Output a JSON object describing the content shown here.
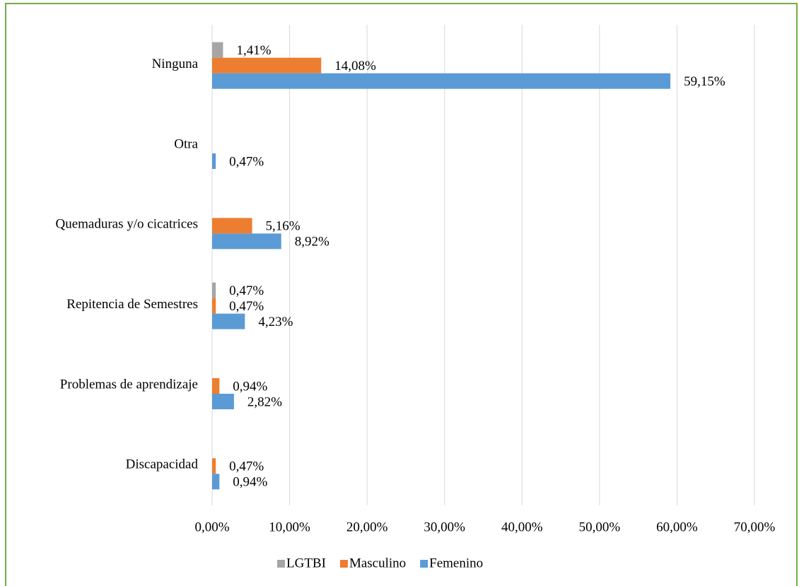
{
  "chart_data": {
    "type": "hbar",
    "categories": [
      "Ninguna",
      "Otra",
      "Quemaduras y/o cicatrices",
      "Repitencia de Semestres",
      "Problemas de aprendizaje",
      "Discapacidad"
    ],
    "series": [
      {
        "name": "LGTBI",
        "color": "#a5a5a5",
        "values": [
          1.41,
          null,
          null,
          0.47,
          null,
          null
        ],
        "value_labels": [
          "1,41%",
          null,
          null,
          "0,47%",
          null,
          null
        ]
      },
      {
        "name": "Masculino",
        "color": "#ed7d31",
        "values": [
          14.08,
          null,
          5.16,
          0.47,
          0.94,
          0.47
        ],
        "value_labels": [
          "14,08%",
          null,
          "5,16%",
          "0,47%",
          "0,94%",
          "0,47%"
        ]
      },
      {
        "name": "Femenino",
        "color": "#5b9bd5",
        "values": [
          59.15,
          0.47,
          8.92,
          4.23,
          2.82,
          0.94
        ],
        "value_labels": [
          "59,15%",
          "0,47%",
          "8,92%",
          "4,23%",
          "2,82%",
          "0,94%"
        ]
      }
    ],
    "xlim": [
      0,
      70
    ],
    "xticks": [
      {
        "value": 0,
        "label": "0,00%"
      },
      {
        "value": 10,
        "label": "10,00%"
      },
      {
        "value": 20,
        "label": "20,00%"
      },
      {
        "value": 30,
        "label": "30,00%"
      },
      {
        "value": 40,
        "label": "40,00%"
      },
      {
        "value": 50,
        "label": "50,00%"
      },
      {
        "value": 60,
        "label": "60,00%"
      },
      {
        "value": 70,
        "label": "70,00%"
      }
    ],
    "grid": true,
    "legend": "bottom"
  }
}
